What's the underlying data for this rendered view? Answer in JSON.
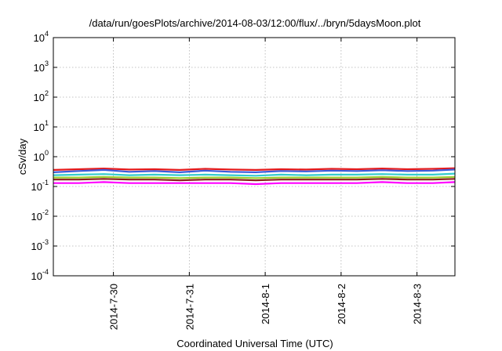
{
  "chart_data": {
    "type": "line",
    "title": "/data/run/goesPlots/archive/2014-08-03/12:00/flux/../bryn/5daysMoon.plot",
    "xlabel": "Coordinated Universal Time (UTC)",
    "ylabel": "cSv/day",
    "yscale": "log",
    "ylim": [
      0.0001,
      10000
    ],
    "xlim": [
      "2014-07-29 05:00",
      "2014-08-03 12:00"
    ],
    "grid": true,
    "yticks": [
      {
        "base": "10",
        "exp": "-4"
      },
      {
        "base": "10",
        "exp": "-3"
      },
      {
        "base": "10",
        "exp": "-2"
      },
      {
        "base": "10",
        "exp": "-1"
      },
      {
        "base": "10",
        "exp": "0"
      },
      {
        "base": "10",
        "exp": "1"
      },
      {
        "base": "10",
        "exp": "2"
      },
      {
        "base": "10",
        "exp": "3"
      },
      {
        "base": "10",
        "exp": "4"
      }
    ],
    "xticks": [
      {
        "label": "2014-7-30",
        "t": "2014-07-30 00:00"
      },
      {
        "label": "2014-7-31",
        "t": "2014-07-31 00:00"
      },
      {
        "label": "2014-8-1",
        "t": "2014-08-01 00:00"
      },
      {
        "label": "2014-8-2",
        "t": "2014-08-02 00:00"
      },
      {
        "label": "2014-8-3",
        "t": "2014-08-03 00:00"
      }
    ],
    "x": [
      "2014-07-29 05:00",
      "2014-07-29 13:00",
      "2014-07-29 21:00",
      "2014-07-30 05:00",
      "2014-07-30 13:00",
      "2014-07-30 21:00",
      "2014-07-31 05:00",
      "2014-07-31 13:00",
      "2014-07-31 21:00",
      "2014-08-01 05:00",
      "2014-08-01 13:00",
      "2014-08-01 21:00",
      "2014-08-02 05:00",
      "2014-08-02 13:00",
      "2014-08-02 21:00",
      "2014-08-03 05:00",
      "2014-08-03 12:00"
    ],
    "series": [
      {
        "color": "#e41a1c",
        "values": [
          0.36,
          0.38,
          0.4,
          0.37,
          0.38,
          0.36,
          0.39,
          0.37,
          0.36,
          0.38,
          0.37,
          0.39,
          0.38,
          0.4,
          0.38,
          0.39,
          0.41
        ]
      },
      {
        "color": "#3b5bdb",
        "values": [
          0.3,
          0.33,
          0.36,
          0.31,
          0.33,
          0.3,
          0.34,
          0.31,
          0.3,
          0.33,
          0.32,
          0.34,
          0.33,
          0.35,
          0.33,
          0.34,
          0.37
        ]
      },
      {
        "color": "#33cccc",
        "values": [
          0.24,
          0.25,
          0.26,
          0.24,
          0.25,
          0.24,
          0.25,
          0.24,
          0.23,
          0.25,
          0.24,
          0.25,
          0.25,
          0.26,
          0.25,
          0.25,
          0.27
        ]
      },
      {
        "color": "#9acd32",
        "values": [
          0.2,
          0.2,
          0.21,
          0.2,
          0.2,
          0.19,
          0.2,
          0.2,
          0.19,
          0.2,
          0.2,
          0.2,
          0.2,
          0.21,
          0.2,
          0.2,
          0.21
        ]
      },
      {
        "color": "#8b1a1a",
        "values": [
          0.17,
          0.17,
          0.18,
          0.17,
          0.17,
          0.16,
          0.17,
          0.17,
          0.16,
          0.17,
          0.17,
          0.17,
          0.17,
          0.18,
          0.17,
          0.17,
          0.18
        ]
      },
      {
        "color": "#ff00ff",
        "values": [
          0.13,
          0.13,
          0.14,
          0.13,
          0.13,
          0.13,
          0.13,
          0.13,
          0.12,
          0.13,
          0.13,
          0.13,
          0.13,
          0.14,
          0.13,
          0.13,
          0.14
        ]
      }
    ]
  }
}
